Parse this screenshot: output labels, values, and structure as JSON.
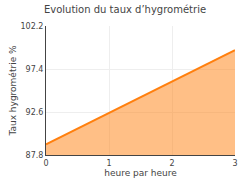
{
  "chart_data": {
    "type": "area",
    "title": "Evolution du taux d’hygrométrie",
    "xlabel": "heure par heure",
    "ylabel": "Taux hygrométrie %",
    "x": [
      0,
      3
    ],
    "values": [
      89.0,
      99.5
    ],
    "baseline": 87.8,
    "xlim": [
      0,
      3
    ],
    "xticks": [
      0,
      1,
      2,
      3
    ],
    "ylim": [
      87.8,
      102.2
    ],
    "yticks": [
      87.8,
      92.6,
      97.4,
      102.2
    ],
    "grid": true
  }
}
